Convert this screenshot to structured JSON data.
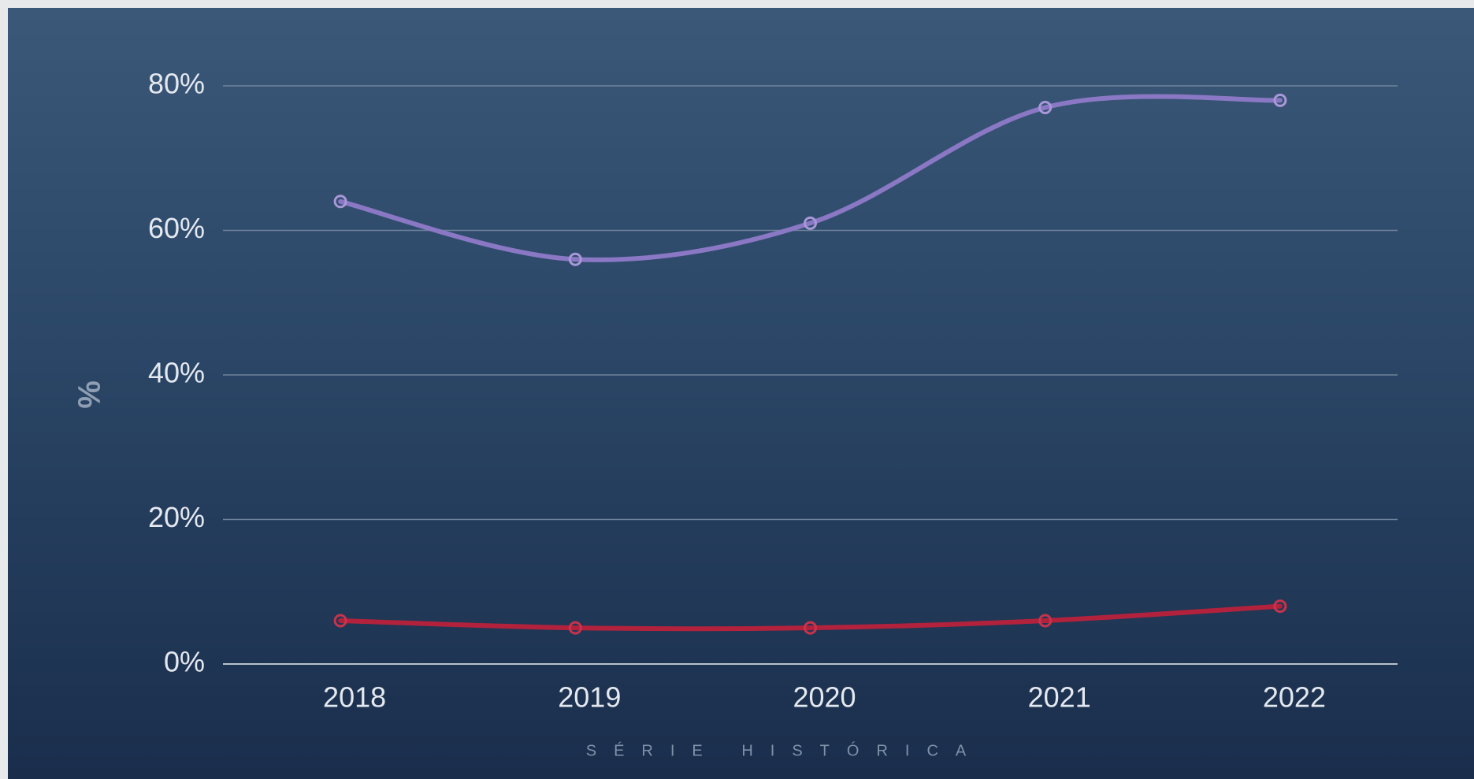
{
  "chart_data": {
    "type": "line",
    "y_label": "%",
    "x_label": "SÉRIE HISTÓRICA",
    "categories": [
      "2018",
      "2019",
      "2020",
      "2021",
      "2022"
    ],
    "series": [
      {
        "color": "#8a78c4",
        "values": [
          64,
          56,
          61,
          77,
          78
        ]
      },
      {
        "color": "#b3223c",
        "values": [
          6,
          5,
          5,
          6,
          8
        ]
      }
    ],
    "ylim": [
      0,
      80
    ],
    "yticks": [
      {
        "value": 0,
        "label": "0%"
      },
      {
        "value": 20,
        "label": "20%"
      },
      {
        "value": 40,
        "label": "40%"
      },
      {
        "value": 60,
        "label": "60%"
      },
      {
        "value": 80,
        "label": "80%"
      }
    ],
    "grid": true,
    "smooth": true
  }
}
